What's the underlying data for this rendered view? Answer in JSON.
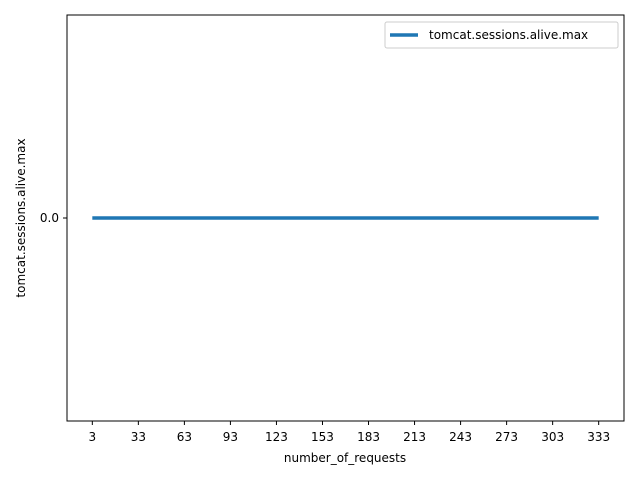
{
  "chart_data": {
    "type": "line",
    "xlabel": "number_of_requests",
    "ylabel": "tomcat.sessions.alive.max",
    "x": [
      3,
      33,
      63,
      93,
      123,
      153,
      183,
      213,
      243,
      273,
      303,
      333
    ],
    "x_tick_labels": [
      "3",
      "33",
      "63",
      "93",
      "123",
      "153",
      "183",
      "213",
      "243",
      "273",
      "303",
      "333"
    ],
    "y_tick_labels": [
      "0.0"
    ],
    "y_ticks": [
      0.0
    ],
    "ylim": [
      -0.055,
      0.055
    ],
    "series": [
      {
        "name": "tomcat.sessions.alive.max",
        "values": [
          0,
          0,
          0,
          0,
          0,
          0,
          0,
          0,
          0,
          0,
          0,
          0
        ],
        "color": "#1f77b4"
      }
    ],
    "legend": {
      "position": "top-right"
    },
    "grid": false
  }
}
